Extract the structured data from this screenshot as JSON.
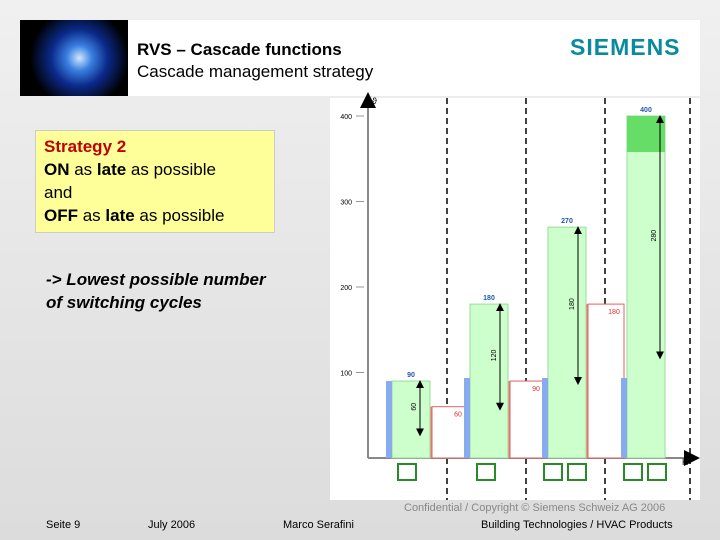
{
  "header": {
    "title": "RVS – Cascade functions",
    "subtitle": "Cascade management strategy",
    "logo": "SIEMENS"
  },
  "strategy": {
    "title": "Strategy 2",
    "lines": [
      [
        {
          "text": "ON",
          "bold": true
        },
        {
          "text": " as ",
          "bold": false
        },
        {
          "text": "late",
          "bold": true
        },
        {
          "text": " as possible",
          "bold": false
        }
      ],
      [
        {
          "text": "and",
          "bold": false
        }
      ],
      [
        {
          "text": "OFF",
          "bold": true
        },
        {
          "text": " as ",
          "bold": false
        },
        {
          "text": "late",
          "bold": true
        },
        {
          "text": " as possible",
          "bold": false
        }
      ]
    ]
  },
  "note": [
    "-> Lowest possible number",
    "of switching cycles"
  ],
  "diagram": {
    "y_label": "ϑ",
    "x_label": "K",
    "ticks": [
      100,
      200,
      300,
      400
    ],
    "bars": [
      90,
      180,
      270,
      400
    ],
    "offsets": [
      60,
      90,
      180
    ],
    "arrows": [
      60,
      120,
      180,
      280
    ]
  },
  "footer": {
    "page": "Seite 9",
    "date": "July 2006",
    "author": "Marco Serafini",
    "copyright": "Confidential / Copyright © Siemens Schweiz AG 2006",
    "division": "Building Technologies / HVAC Products"
  }
}
